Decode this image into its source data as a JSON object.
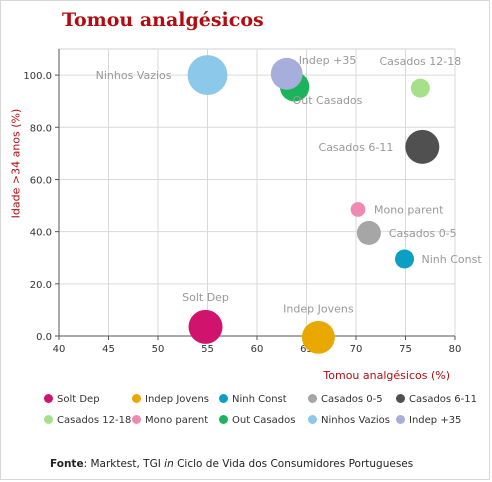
{
  "title": "Tomou analgésicos",
  "source": {
    "prefix": "Fonte",
    "text_before": ": Marktest, TGI ",
    "italic": "in",
    "text_after": " Ciclo de Vida dos Consumidores Portugueses"
  },
  "chart_data": {
    "type": "scatter",
    "xlabel": "Tomou analgésicos (%)",
    "ylabel": "Idade >34 anos (%)",
    "xlim": [
      40,
      80
    ],
    "ylim": [
      0,
      110
    ],
    "xticks": [
      "40",
      "45",
      "50",
      "55",
      "60",
      "65",
      "70",
      "75",
      "80"
    ],
    "yticks": [
      "0.0",
      "20.0",
      "40.0",
      "60.0",
      "80.0",
      "100.0"
    ],
    "grid": true,
    "legend_position": "bottom",
    "series": [
      {
        "name": "Solt Dep",
        "x": 54.8,
        "y": 3.5,
        "size": 1.6,
        "color": "#d0146e"
      },
      {
        "name": "Indep Jovens",
        "x": 66.2,
        "y": -0.5,
        "size": 1.5,
        "color": "#e8a800"
      },
      {
        "name": "Ninh Const",
        "x": 74.9,
        "y": 29.5,
        "size": 0.5,
        "color": "#0d9fc3"
      },
      {
        "name": "Casados 0-5",
        "x": 71.3,
        "y": 39.5,
        "size": 0.8,
        "color": "#a6a6a6"
      },
      {
        "name": "Casados 6-11",
        "x": 76.7,
        "y": 72.5,
        "size": 1.6,
        "color": "#505050"
      },
      {
        "name": "Casados  12-18",
        "x": 76.5,
        "y": 95.0,
        "size": 0.5,
        "color": "#a5e08a"
      },
      {
        "name": "Mono parent",
        "x": 70.2,
        "y": 48.5,
        "size": 0.3,
        "color": "#ef8ab2"
      },
      {
        "name": "Out Casados",
        "x": 63.8,
        "y": 95.5,
        "size": 1.2,
        "color": "#1ab55a"
      },
      {
        "name": "Ninhos Vazios",
        "x": 55.0,
        "y": 100.0,
        "size": 2.2,
        "color": "#8cc8ea"
      },
      {
        "name": "Indep +35",
        "x": 63.0,
        "y": 100.5,
        "size": 1.4,
        "color": "#a8aedb"
      }
    ]
  }
}
